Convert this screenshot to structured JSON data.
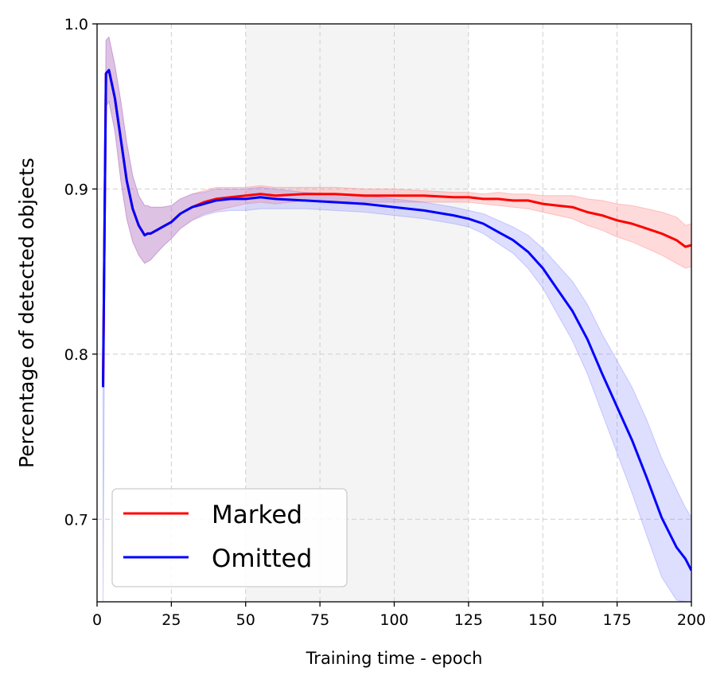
{
  "chart_data": {
    "type": "line",
    "xlabel": "Training time - epoch",
    "ylabel": "Percentage of detected objects",
    "xlim": [
      0,
      200
    ],
    "ylim": [
      0.65,
      1.0
    ],
    "xticks": [
      0,
      25,
      50,
      75,
      100,
      125,
      150,
      175,
      200
    ],
    "yticks": [
      0.7,
      0.8,
      0.9,
      1.0
    ],
    "xtick_labels": [
      "0",
      "25",
      "50",
      "75",
      "100",
      "125",
      "150",
      "175",
      "200"
    ],
    "ytick_labels": [
      "0.7",
      "0.8",
      "0.9",
      "1.0"
    ],
    "grid": true,
    "shaded_span": [
      50,
      125
    ],
    "legend_position": "lower-left",
    "series": [
      {
        "name": "Marked",
        "color": "#ff0000",
        "band_color": "#ff6b6b",
        "x": [
          2,
          3,
          4,
          6,
          8,
          10,
          12,
          14,
          16,
          17,
          18,
          20,
          22,
          25,
          28,
          32,
          36,
          40,
          45,
          50,
          55,
          60,
          70,
          80,
          90,
          100,
          110,
          120,
          125,
          130,
          135,
          140,
          145,
          150,
          155,
          160,
          165,
          170,
          175,
          180,
          185,
          190,
          195,
          198,
          200
        ],
        "y": [
          0.78,
          0.97,
          0.972,
          0.955,
          0.93,
          0.905,
          0.888,
          0.878,
          0.872,
          0.873,
          0.873,
          0.875,
          0.877,
          0.88,
          0.885,
          0.889,
          0.892,
          0.894,
          0.895,
          0.896,
          0.897,
          0.896,
          0.897,
          0.897,
          0.896,
          0.896,
          0.896,
          0.895,
          0.895,
          0.894,
          0.894,
          0.893,
          0.893,
          0.891,
          0.89,
          0.889,
          0.886,
          0.884,
          0.881,
          0.879,
          0.876,
          0.873,
          0.869,
          0.865,
          0.866
        ],
        "lower": [
          0.78,
          0.95,
          0.953,
          0.935,
          0.905,
          0.882,
          0.868,
          0.86,
          0.855,
          0.856,
          0.857,
          0.861,
          0.865,
          0.87,
          0.876,
          0.881,
          0.885,
          0.887,
          0.889,
          0.891,
          0.892,
          0.891,
          0.893,
          0.893,
          0.892,
          0.892,
          0.892,
          0.892,
          0.892,
          0.891,
          0.89,
          0.889,
          0.888,
          0.886,
          0.884,
          0.882,
          0.878,
          0.875,
          0.871,
          0.868,
          0.864,
          0.86,
          0.855,
          0.852,
          0.853
        ],
        "upper": [
          0.78,
          0.99,
          0.992,
          0.975,
          0.953,
          0.928,
          0.908,
          0.896,
          0.89,
          0.89,
          0.889,
          0.889,
          0.889,
          0.89,
          0.894,
          0.897,
          0.899,
          0.901,
          0.901,
          0.901,
          0.902,
          0.901,
          0.901,
          0.901,
          0.9,
          0.9,
          0.899,
          0.898,
          0.898,
          0.897,
          0.898,
          0.897,
          0.897,
          0.896,
          0.896,
          0.896,
          0.894,
          0.893,
          0.891,
          0.89,
          0.888,
          0.886,
          0.883,
          0.878,
          0.879
        ]
      },
      {
        "name": "Omitted",
        "color": "#0000ff",
        "band_color": "#7b7bff",
        "x": [
          2,
          3,
          4,
          6,
          8,
          10,
          12,
          14,
          16,
          17,
          18,
          20,
          22,
          25,
          28,
          32,
          36,
          40,
          45,
          50,
          55,
          60,
          70,
          80,
          90,
          100,
          110,
          120,
          125,
          130,
          135,
          140,
          145,
          150,
          155,
          160,
          165,
          170,
          175,
          180,
          185,
          190,
          195,
          198,
          200
        ],
        "y": [
          0.78,
          0.97,
          0.972,
          0.955,
          0.93,
          0.905,
          0.888,
          0.878,
          0.872,
          0.873,
          0.873,
          0.875,
          0.877,
          0.88,
          0.885,
          0.889,
          0.891,
          0.893,
          0.894,
          0.894,
          0.895,
          0.894,
          0.893,
          0.892,
          0.891,
          0.889,
          0.887,
          0.884,
          0.882,
          0.879,
          0.874,
          0.869,
          0.862,
          0.852,
          0.839,
          0.826,
          0.809,
          0.788,
          0.768,
          0.748,
          0.725,
          0.701,
          0.683,
          0.676,
          0.669
        ],
        "lower": [
          0.65,
          0.95,
          0.953,
          0.935,
          0.905,
          0.882,
          0.868,
          0.86,
          0.855,
          0.856,
          0.857,
          0.861,
          0.865,
          0.87,
          0.876,
          0.881,
          0.884,
          0.886,
          0.887,
          0.887,
          0.888,
          0.888,
          0.888,
          0.887,
          0.886,
          0.884,
          0.882,
          0.879,
          0.877,
          0.873,
          0.867,
          0.861,
          0.852,
          0.84,
          0.824,
          0.808,
          0.788,
          0.764,
          0.74,
          0.716,
          0.69,
          0.665,
          0.651,
          0.65,
          0.65
        ],
        "upper": [
          0.78,
          0.99,
          0.992,
          0.975,
          0.953,
          0.928,
          0.908,
          0.896,
          0.89,
          0.89,
          0.889,
          0.889,
          0.889,
          0.89,
          0.894,
          0.897,
          0.898,
          0.9,
          0.9,
          0.9,
          0.901,
          0.9,
          0.898,
          0.897,
          0.896,
          0.894,
          0.892,
          0.889,
          0.887,
          0.885,
          0.881,
          0.877,
          0.872,
          0.864,
          0.854,
          0.844,
          0.83,
          0.812,
          0.796,
          0.78,
          0.76,
          0.737,
          0.718,
          0.707,
          0.701
        ]
      }
    ]
  }
}
